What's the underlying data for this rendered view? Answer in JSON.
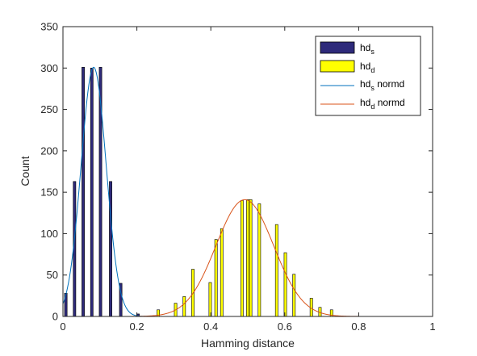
{
  "chart_data": {
    "type": "bar",
    "xlabel": "Hamming distance",
    "ylabel": "Count",
    "xlim": [
      0,
      1
    ],
    "ylim": [
      0,
      350
    ],
    "xticks": [
      "0",
      "0.2",
      "0.4",
      "0.6",
      "0.8",
      "1"
    ],
    "yticks": [
      "0",
      "50",
      "100",
      "150",
      "200",
      "250",
      "300",
      "350"
    ],
    "grid": false,
    "legend_position": "top-right",
    "legend": [
      {
        "base": "hd",
        "sub": "s",
        "suffix": "",
        "kind": "bar"
      },
      {
        "base": "hd",
        "sub": "d",
        "suffix": "",
        "kind": "bar"
      },
      {
        "base": "hd",
        "sub": "s",
        "suffix": " normd",
        "kind": "line"
      },
      {
        "base": "hd",
        "sub": "d",
        "suffix": " normd",
        "kind": "line"
      }
    ],
    "series": [
      {
        "id": "hd_s",
        "kind": "bar",
        "color": "#2e2a7a",
        "x": [
          0.0078,
          0.0313,
          0.0547,
          0.0781,
          0.1016,
          0.1289,
          0.1563,
          0.2031
        ],
        "values": [
          28,
          163,
          301,
          300,
          301,
          163,
          40,
          3
        ]
      },
      {
        "id": "hd_d",
        "kind": "bar",
        "color": "#ffff00",
        "x": [
          0.2578,
          0.3047,
          0.3281,
          0.3516,
          0.3984,
          0.4141,
          0.4297,
          0.4844,
          0.5,
          0.5078,
          0.5313,
          0.5781,
          0.6016,
          0.625,
          0.6719,
          0.6953,
          0.7266
        ],
        "values": [
          8,
          16,
          24,
          57,
          41,
          93,
          106,
          140,
          141,
          141,
          136,
          111,
          77,
          51,
          22,
          11,
          8
        ]
      },
      {
        "id": "hd_s_normd",
        "kind": "line",
        "color": "#0072bd",
        "mu": 0.083,
        "sigma": 0.034,
        "peak": 301
      },
      {
        "id": "hd_d_normd",
        "kind": "line",
        "color": "#d95319",
        "mu": 0.492,
        "sigma": 0.078,
        "peak": 141
      }
    ]
  }
}
